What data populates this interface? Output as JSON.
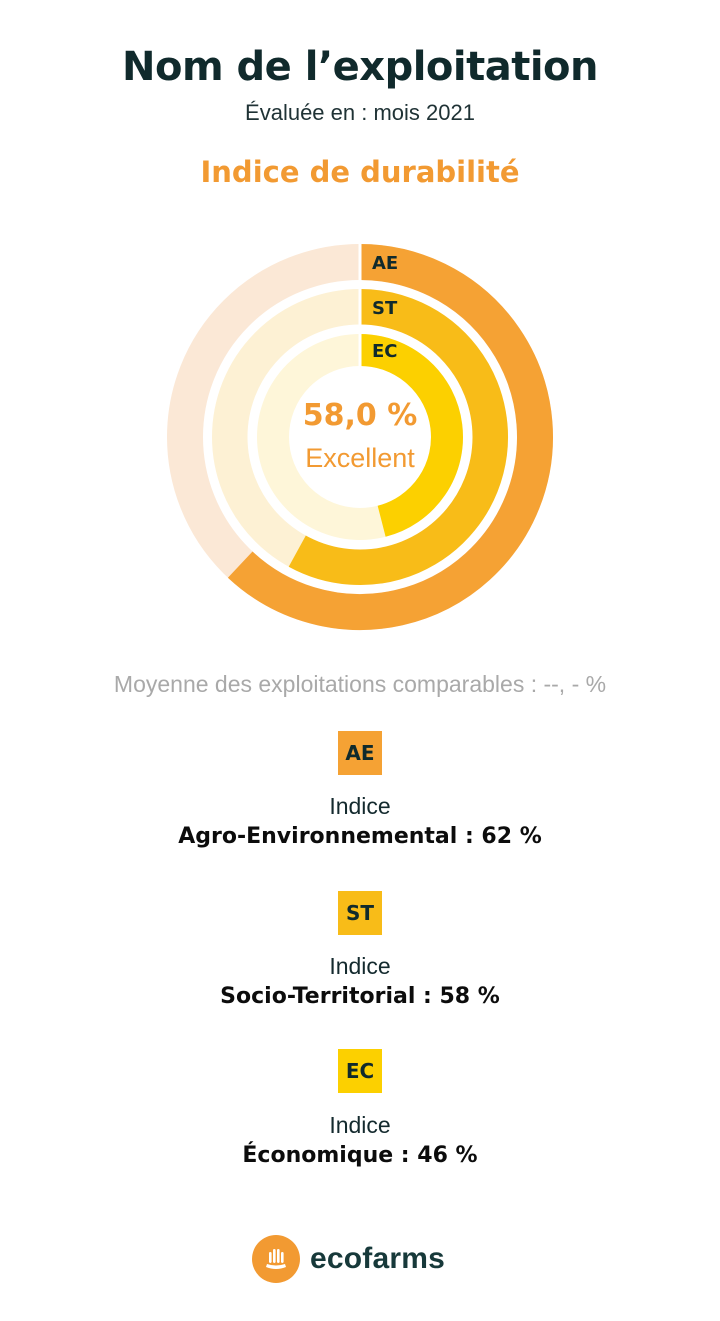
{
  "header": {
    "title": "Nom de l’exploitation",
    "evaluated": "Évaluée en : mois 2021",
    "section_title": "Indice de durabilité"
  },
  "colors": {
    "ae": "#f5a234",
    "ae_track": "#fbe8d6",
    "st": "#f8bc18",
    "st_track": "#fdf1d4",
    "ec": "#fcd000",
    "ec_track": "#fef6d9",
    "accent": "#f29a32",
    "muted": "#a9a9a9",
    "brand_text": "#17393a"
  },
  "chart_data": {
    "type": "radial-bar",
    "title": "Indice de durabilité",
    "center_value": "58,0 %",
    "center_label": "Excellent",
    "max": 100,
    "series": [
      {
        "name": "AE",
        "value": 62
      },
      {
        "name": "ST",
        "value": 58
      },
      {
        "name": "EC",
        "value": 46
      }
    ]
  },
  "average": "Moyenne des exploitations comparables : --, - %",
  "indices": [
    {
      "badge": "AE",
      "label": "Indice",
      "name": "Agro-Environnemental : 62 %"
    },
    {
      "badge": "ST",
      "label": "Indice",
      "name": "Socio-Territorial : 58 %"
    },
    {
      "badge": "EC",
      "label": "Indice",
      "name": "Économique : 46 %"
    }
  ],
  "footer": {
    "brand": "ecofarms",
    "logo_icon": "wheat-icon"
  }
}
